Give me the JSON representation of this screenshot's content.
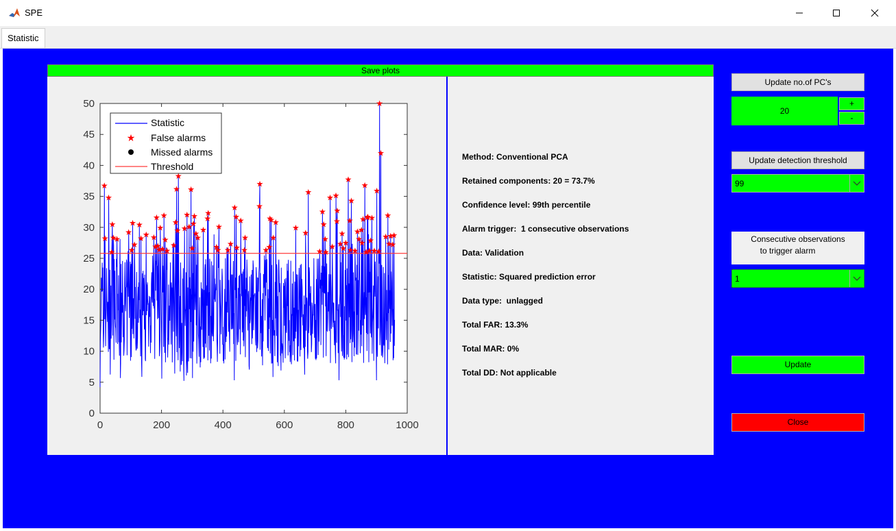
{
  "window": {
    "title": "SPE",
    "minimize_icon": "minimize-icon",
    "maximize_icon": "maximize-icon",
    "close_icon": "close-icon"
  },
  "tabs": [
    {
      "label": "Statistic"
    }
  ],
  "save_plots_label": "Save plots",
  "info": [
    "Method: Conventional PCA",
    "Retained components: 20 = 73.7%",
    "Confidence level: 99th percentile",
    "Alarm trigger:  1 consecutive observations",
    "Data: Validation",
    "Statistic: Squared prediction error",
    "Data type:  unlagged",
    "Total FAR: 13.3%",
    "Total MAR: 0%",
    "Total DD: Not applicable"
  ],
  "controls": {
    "update_pcs_label": "Update no.of PC's",
    "pcs_value": "20",
    "plus_label": "+",
    "minus_label": "-",
    "update_threshold_label": "Update detection threshold",
    "threshold_value": "99",
    "consecutive_label_1": "Consecutive observations",
    "consecutive_label_2": "to trigger alarm",
    "consecutive_value": "1",
    "update_label": "Update",
    "close_label": "Close"
  },
  "colors": {
    "panel": "#0000ff",
    "statistic": "#0000ff",
    "threshold": "#ff3b3b",
    "alarm": "#ff0000",
    "green": "#00ff00",
    "red": "#ff0000"
  },
  "chart_data": {
    "type": "line",
    "xlim": [
      0,
      1000
    ],
    "ylim": [
      0,
      50
    ],
    "xticks": [
      0,
      200,
      400,
      600,
      800,
      1000
    ],
    "yticks": [
      0,
      5,
      10,
      15,
      20,
      25,
      30,
      35,
      40,
      45,
      50
    ],
    "n_points": 960,
    "threshold": 25.8,
    "legend": {
      "position": "top-left",
      "entries": [
        "Statistic",
        "False alarms",
        "Missed alarms",
        "Threshold"
      ]
    },
    "false_alarms": [
      [
        14,
        36.7
      ],
      [
        16,
        28.2
      ],
      [
        28,
        34.8
      ],
      [
        38,
        26.0
      ],
      [
        40,
        30.5
      ],
      [
        43,
        28.3
      ],
      [
        55,
        28.1
      ],
      [
        93,
        29.2
      ],
      [
        103,
        26.3
      ],
      [
        106,
        30.7
      ],
      [
        112,
        27.2
      ],
      [
        128,
        30.4
      ],
      [
        133,
        28.2
      ],
      [
        150,
        28.8
      ],
      [
        175,
        28.4
      ],
      [
        180,
        26.9
      ],
      [
        184,
        31.6
      ],
      [
        188,
        27.0
      ],
      [
        192,
        26.4
      ],
      [
        196,
        29.9
      ],
      [
        203,
        26.5
      ],
      [
        208,
        31.9
      ],
      [
        212,
        28.0
      ],
      [
        218,
        26.2
      ],
      [
        240,
        27.1
      ],
      [
        246,
        30.8
      ],
      [
        249,
        36.2
      ],
      [
        252,
        29.5
      ],
      [
        255,
        38.3
      ],
      [
        275,
        29.8
      ],
      [
        283,
        32.0
      ],
      [
        290,
        30.1
      ],
      [
        296,
        36.1
      ],
      [
        300,
        26.6
      ],
      [
        304,
        30.6
      ],
      [
        307,
        31.8
      ],
      [
        312,
        29.0
      ],
      [
        318,
        28.3
      ],
      [
        336,
        29.6
      ],
      [
        350,
        31.4
      ],
      [
        352,
        32.3
      ],
      [
        379,
        26.8
      ],
      [
        384,
        26.3
      ],
      [
        387,
        30.1
      ],
      [
        416,
        26.3
      ],
      [
        425,
        27.3
      ],
      [
        438,
        33.2
      ],
      [
        443,
        31.7
      ],
      [
        445,
        26.7
      ],
      [
        458,
        31.1
      ],
      [
        470,
        26.3
      ],
      [
        472,
        28.3
      ],
      [
        519,
        33.4
      ],
      [
        520,
        37.0
      ],
      [
        540,
        26.3
      ],
      [
        551,
        26.8
      ],
      [
        553,
        31.4
      ],
      [
        557,
        31.2
      ],
      [
        564,
        28.3
      ],
      [
        572,
        30.8
      ],
      [
        637,
        29.9
      ],
      [
        669,
        29.1
      ],
      [
        678,
        35.7
      ],
      [
        715,
        26.1
      ],
      [
        724,
        32.5
      ],
      [
        728,
        30.5
      ],
      [
        733,
        28.1
      ],
      [
        735,
        26.0
      ],
      [
        749,
        34.8
      ],
      [
        756,
        26.9
      ],
      [
        768,
        35.1
      ],
      [
        771,
        31.0
      ],
      [
        772,
        32.7
      ],
      [
        782,
        27.3
      ],
      [
        788,
        29.0
      ],
      [
        792,
        26.6
      ],
      [
        800,
        27.5
      ],
      [
        808,
        37.7
      ],
      [
        813,
        31.1
      ],
      [
        815,
        26.3
      ],
      [
        818,
        34.3
      ],
      [
        830,
        26.2
      ],
      [
        838,
        29.3
      ],
      [
        843,
        28.1
      ],
      [
        851,
        29.6
      ],
      [
        853,
        27.5
      ],
      [
        856,
        31.3
      ],
      [
        862,
        36.8
      ],
      [
        866,
        26.0
      ],
      [
        870,
        31.6
      ],
      [
        872,
        31.7
      ],
      [
        877,
        26.2
      ],
      [
        881,
        27.9
      ],
      [
        885,
        31.5
      ],
      [
        893,
        26.2
      ],
      [
        901,
        35.9
      ],
      [
        907,
        26.1
      ],
      [
        910,
        50.0
      ],
      [
        914,
        42.0
      ],
      [
        930,
        28.5
      ],
      [
        937,
        31.9
      ],
      [
        941,
        27.3
      ],
      [
        946,
        28.6
      ],
      [
        953,
        27.2
      ],
      [
        957,
        28.7
      ]
    ]
  }
}
